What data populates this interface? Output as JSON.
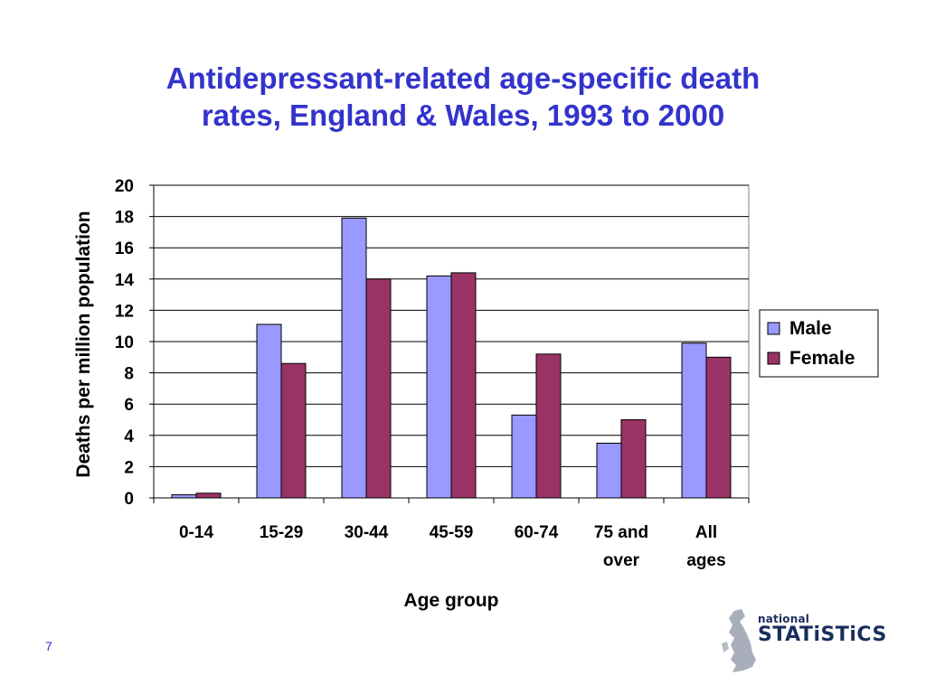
{
  "slide": {
    "title_line1": "Antidepressant-related age-specific death",
    "title_line2": "rates, England & Wales, 1993 to 2000",
    "page_number": "7"
  },
  "logo": {
    "small_text": "national",
    "big_text": "STATiSTiCS"
  },
  "colors": {
    "title": "#3333cc",
    "male": "#9999ff",
    "female": "#993366"
  },
  "chart_data": {
    "type": "bar",
    "categories": [
      [
        "0-14"
      ],
      [
        "15-29"
      ],
      [
        "30-44"
      ],
      [
        "45-59"
      ],
      [
        "60-74"
      ],
      [
        "75 and",
        "over"
      ],
      [
        "All",
        "ages"
      ]
    ],
    "series": [
      {
        "name": "Male",
        "values": [
          0.2,
          11.1,
          17.9,
          14.2,
          5.3,
          3.5,
          9.9
        ],
        "color": "#9999ff"
      },
      {
        "name": "Female",
        "values": [
          0.3,
          8.6,
          14.0,
          14.4,
          9.2,
          5.0,
          9.0
        ],
        "color": "#993366"
      }
    ],
    "xlabel": "Age group",
    "ylabel": "Deaths per million population",
    "ylim": [
      0,
      20
    ],
    "yticks": [
      "0",
      "2",
      "4",
      "6",
      "8",
      "10",
      "12",
      "14",
      "16",
      "18",
      "20"
    ],
    "grid": true,
    "legend_position": "right"
  }
}
